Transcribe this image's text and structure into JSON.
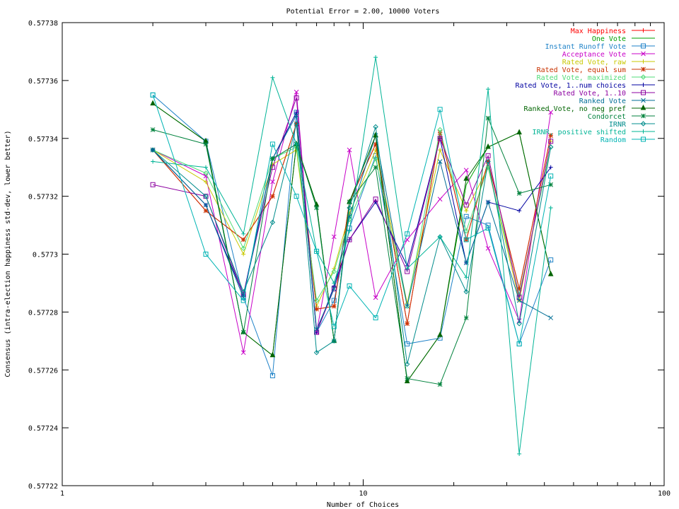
{
  "chart_data": {
    "type": "line",
    "title": "Potential Error = 2.00, 10000 Voters",
    "xlabel": "Number of Choices",
    "ylabel": "Consensus (intra-election happiness std-dev, lower better)",
    "xscale": "log",
    "xlim": [
      1,
      100
    ],
    "ylim": [
      0.57722,
      0.57738
    ],
    "x_ticks": [
      1,
      10,
      100
    ],
    "y_ticks": [
      0.57722,
      0.57724,
      0.57726,
      0.57728,
      0.5773,
      0.57732,
      0.57734,
      0.57736,
      0.57738
    ],
    "legend_position": "top-right",
    "x": [
      2,
      3,
      4,
      5,
      6,
      7,
      8,
      9,
      11,
      14,
      18,
      22,
      26,
      33,
      42
    ],
    "series": [
      {
        "name": "Max Happiness",
        "color": "#ff0000",
        "marker": "plus",
        "values": [
          0.577336,
          0.577315,
          0.577305,
          0.57732,
          0.577345,
          0.577281,
          0.577282,
          0.577318,
          0.577338,
          0.577276,
          0.577342,
          0.577305,
          0.577332,
          0.577288,
          0.577341
        ]
      },
      {
        "name": "One Vote",
        "color": "#00a000",
        "marker": "cross",
        "values": [
          0.577352,
          0.577339,
          0.577273,
          0.577265,
          0.577338,
          0.577317,
          0.57727,
          0.577318,
          0.577341,
          0.577256,
          0.577272,
          0.577324,
          0.577337,
          0.577342,
          0.577293
        ]
      },
      {
        "name": "Instant Runoff Vote",
        "color": "#1e82c8",
        "marker": "square",
        "values": [
          0.577355,
          0.577339,
          0.577285,
          0.577258,
          0.577349,
          0.577273,
          0.577284,
          0.577309,
          0.577334,
          0.577269,
          0.577271,
          0.577313,
          0.57731,
          0.577269,
          0.577298
        ]
      },
      {
        "name": "Acceptance Vote",
        "color": "#c800c8",
        "marker": "x",
        "values": [
          0.577336,
          0.577327,
          0.577266,
          0.577325,
          0.577356,
          0.577273,
          0.577306,
          0.577336,
          0.577285,
          0.577305,
          0.577319,
          0.577329,
          0.577302,
          0.577277,
          0.577349
        ]
      },
      {
        "name": "Rated Vote, raw",
        "color": "#c8c800",
        "marker": "plus",
        "values": [
          0.577336,
          0.577325,
          0.5773,
          0.577331,
          0.577336,
          0.577282,
          0.577295,
          0.577314,
          0.577336,
          0.577283,
          0.577336,
          0.577315,
          0.57733,
          0.577284,
          0.577339
        ]
      },
      {
        "name": "Rated Vote, equal sum",
        "color": "#c83200",
        "marker": "star",
        "values": [
          0.577336,
          0.577315,
          0.577305,
          0.57732,
          0.577345,
          0.577281,
          0.577282,
          0.577318,
          0.577338,
          0.577276,
          0.577342,
          0.577305,
          0.577332,
          0.577288,
          0.577341
        ]
      },
      {
        "name": "Rated Vote, maximized",
        "color": "#50dc78",
        "marker": "diamond",
        "values": [
          0.577336,
          0.577328,
          0.577302,
          0.577333,
          0.577337,
          0.577284,
          0.577294,
          0.577312,
          0.577333,
          0.577282,
          0.577343,
          0.577308,
          0.57733,
          0.577286,
          0.577337
        ]
      },
      {
        "name": "Rated Vote, 1..num choices",
        "color": "#0000a0",
        "marker": "plus",
        "values": [
          0.577336,
          0.577317,
          0.577286,
          0.577333,
          0.577349,
          0.577273,
          0.577289,
          0.577305,
          0.577318,
          0.577296,
          0.57734,
          0.577297,
          0.577318,
          0.577315,
          0.57733
        ]
      },
      {
        "name": "Rated Vote, 1..10",
        "color": "#8c00a0",
        "marker": "square",
        "values": [
          0.577324,
          0.57732,
          0.577286,
          0.57733,
          0.577354,
          0.577273,
          0.577288,
          0.577305,
          0.577319,
          0.577294,
          0.57734,
          0.577317,
          0.577334,
          0.577285,
          0.577339
        ]
      },
      {
        "name": "Ranked Vote",
        "color": "#006e96",
        "marker": "x",
        "values": [
          0.577336,
          0.577317,
          0.577285,
          0.577333,
          0.577348,
          0.577274,
          0.577288,
          0.577313,
          0.577341,
          0.577282,
          0.577332,
          0.577297,
          0.577318,
          0.577284,
          0.577278
        ]
      },
      {
        "name": "Ranked Vote, no neg pref",
        "color": "#006400",
        "marker": "triangle",
        "values": [
          0.577352,
          0.577339,
          0.577273,
          0.577265,
          0.577338,
          0.577317,
          0.57727,
          0.577318,
          0.577341,
          0.577256,
          0.577272,
          0.577326,
          0.577337,
          0.577342,
          0.577293
        ]
      },
      {
        "name": "Condorcet",
        "color": "#00823c",
        "marker": "star",
        "values": [
          0.577343,
          0.577338,
          0.577273,
          0.577333,
          0.577338,
          0.577316,
          0.57727,
          0.577318,
          0.57733,
          0.577257,
          0.577255,
          0.577278,
          0.577347,
          0.577321,
          0.577324
        ]
      },
      {
        "name": "IRNR",
        "color": "#008c8c",
        "marker": "diamond",
        "values": [
          0.577336,
          0.57732,
          0.577287,
          0.577311,
          0.577345,
          0.577266,
          0.57727,
          0.577316,
          0.577344,
          0.577262,
          0.577306,
          0.577287,
          0.577332,
          0.577276,
          0.577337
        ]
      },
      {
        "name": "IRNR, positive shifted",
        "color": "#00b496",
        "marker": "plus",
        "values": [
          0.577332,
          0.57733,
          0.577307,
          0.577361,
          0.577338,
          0.577301,
          0.57729,
          0.577308,
          0.577368,
          0.577295,
          0.577306,
          0.577292,
          0.577357,
          0.577231,
          0.577316
        ]
      },
      {
        "name": "Random",
        "color": "#00b4b4",
        "marker": "square",
        "values": [
          0.577355,
          0.5773,
          0.577284,
          0.577338,
          0.57732,
          0.577301,
          0.577275,
          0.577289,
          0.577278,
          0.577307,
          0.57735,
          0.577305,
          0.577309,
          0.577269,
          0.577327
        ]
      }
    ]
  }
}
